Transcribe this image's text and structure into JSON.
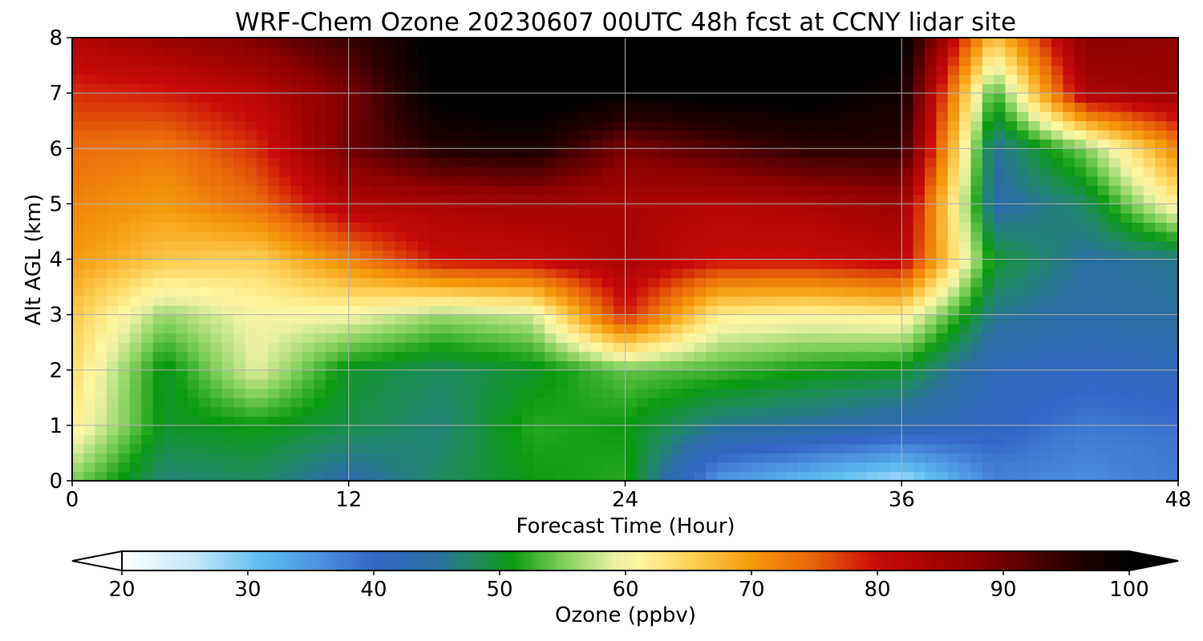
{
  "chart_data": {
    "type": "heatmap",
    "title": "WRF-Chem Ozone  20230607 00UTC 48h fcst at CCNY lidar site",
    "xlabel": "Forecast Time (Hour)",
    "ylabel": "Alt AGL (km)",
    "xlim": [
      0,
      48
    ],
    "ylim": [
      0,
      8
    ],
    "xticks": [
      "0",
      "12",
      "24",
      "36",
      "48"
    ],
    "yticks": [
      "0",
      "1",
      "2",
      "3",
      "4",
      "5",
      "6",
      "7",
      "8"
    ],
    "grid": true,
    "x": [
      0,
      4,
      8,
      12,
      16,
      20,
      24,
      28,
      32,
      36,
      40,
      44,
      48
    ],
    "y": [
      0,
      1,
      2,
      3,
      4,
      5,
      6,
      7,
      8
    ],
    "z": [
      [
        55,
        47,
        48,
        44,
        48,
        51,
        52,
        35,
        31,
        27,
        37,
        36,
        38
      ],
      [
        62,
        50,
        51,
        49,
        47,
        52,
        51,
        46,
        45,
        43,
        41,
        38,
        39
      ],
      [
        64,
        50,
        59,
        50,
        48,
        50,
        54,
        53,
        51,
        50,
        42,
        41,
        42
      ],
      [
        66,
        56,
        60,
        60,
        56,
        58,
        79,
        62,
        61,
        62,
        46,
        44,
        45
      ],
      [
        70,
        66,
        65,
        72,
        80,
        81,
        84,
        80,
        80,
        82,
        50,
        45,
        46
      ],
      [
        72,
        70,
        74,
        83,
        84,
        85,
        84,
        83,
        84,
        86,
        44,
        48,
        62
      ],
      [
        74,
        73,
        78,
        90,
        96,
        97,
        89,
        92,
        95,
        95,
        45,
        55,
        72
      ],
      [
        78,
        79,
        82,
        89,
        101,
        102,
        100,
        101,
        101,
        98,
        52,
        84,
        86
      ],
      [
        83,
        86,
        89,
        94,
        101,
        102,
        102,
        102,
        102,
        101,
        66,
        88,
        87
      ]
    ],
    "colorbar": {
      "label": "Ozone  (ppbv)",
      "min": 20,
      "max": 100,
      "ticks": [
        "20",
        "30",
        "40",
        "50",
        "60",
        "70",
        "80",
        "90",
        "100"
      ],
      "extend": "both",
      "stops": [
        {
          "v": 20,
          "c": "#ffffff"
        },
        {
          "v": 26,
          "c": "#bfe6fa"
        },
        {
          "v": 31,
          "c": "#5ebef2"
        },
        {
          "v": 36,
          "c": "#4a8fdc"
        },
        {
          "v": 40,
          "c": "#3566c8"
        },
        {
          "v": 45,
          "c": "#2a6fa2"
        },
        {
          "v": 48,
          "c": "#1f8a60"
        },
        {
          "v": 51,
          "c": "#0a9a10"
        },
        {
          "v": 55,
          "c": "#7ecf5a"
        },
        {
          "v": 59,
          "c": "#e8f0a0"
        },
        {
          "v": 61,
          "c": "#fff6a0"
        },
        {
          "v": 65,
          "c": "#ffd25a"
        },
        {
          "v": 70,
          "c": "#f59a0c"
        },
        {
          "v": 75,
          "c": "#e8620a"
        },
        {
          "v": 80,
          "c": "#c80a0a"
        },
        {
          "v": 88,
          "c": "#8a0000"
        },
        {
          "v": 95,
          "c": "#2a0000"
        },
        {
          "v": 100,
          "c": "#000000"
        }
      ]
    }
  }
}
